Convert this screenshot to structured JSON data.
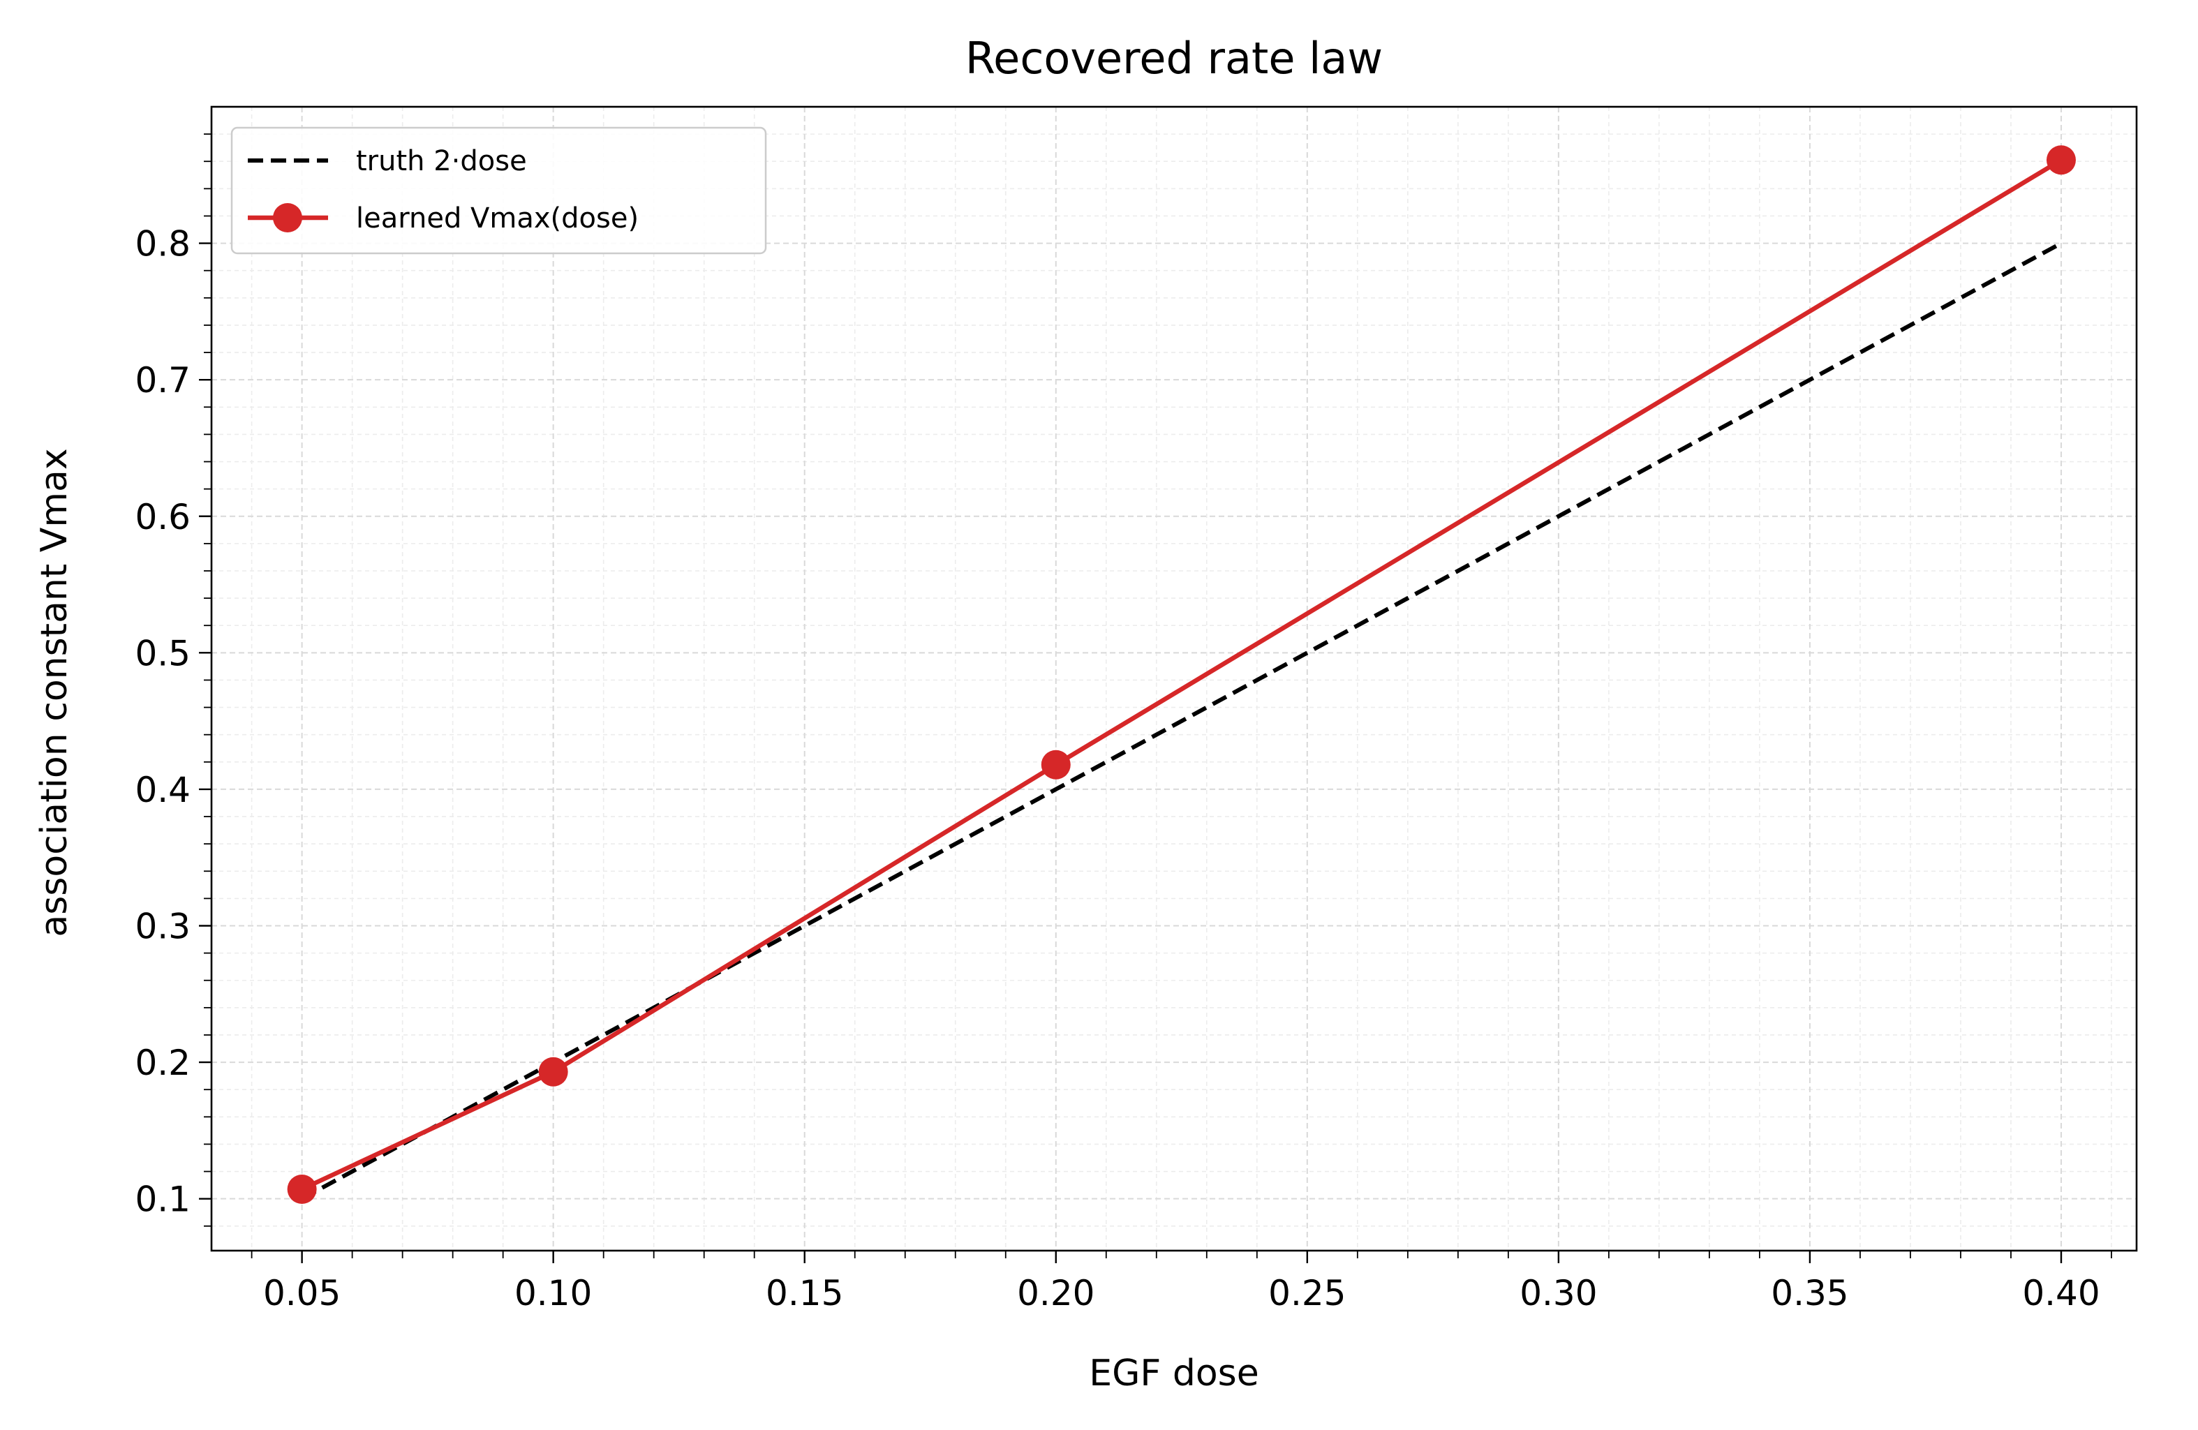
{
  "chart_data": {
    "type": "line",
    "title": "Recovered rate law",
    "xlabel": "EGF dose",
    "ylabel": "association constant  Vmax",
    "xlim": [
      0.032,
      0.415
    ],
    "ylim": [
      0.062,
      0.9
    ],
    "x_ticks": [
      "0.05",
      "0.10",
      "0.15",
      "0.20",
      "0.25",
      "0.30",
      "0.35",
      "0.40"
    ],
    "y_ticks": [
      "0.1",
      "0.2",
      "0.3",
      "0.4",
      "0.5",
      "0.6",
      "0.7",
      "0.8"
    ],
    "grid": true,
    "legend_position": "top-left",
    "series": [
      {
        "name": "truth 2·dose",
        "style": "dashed",
        "color": "#000000",
        "x": [
          0.05,
          0.1,
          0.2,
          0.4
        ],
        "y": [
          0.1,
          0.2,
          0.4,
          0.8
        ]
      },
      {
        "name": "learned Vmax(dose)",
        "style": "solid-marker",
        "color": "#d62728",
        "x": [
          0.05,
          0.1,
          0.2,
          0.4
        ],
        "y": [
          0.107,
          0.193,
          0.418,
          0.861
        ]
      }
    ]
  }
}
